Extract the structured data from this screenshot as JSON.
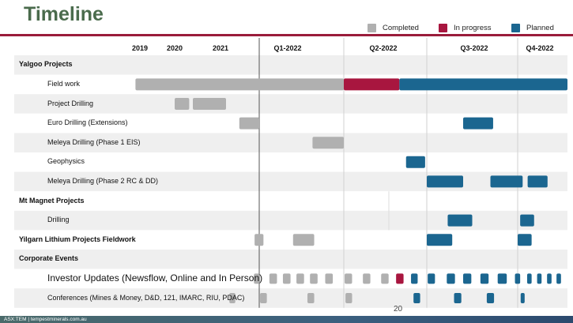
{
  "title": "Timeline",
  "legend": [
    {
      "label": "Completed",
      "color": "#b0b0b0"
    },
    {
      "label": "In progress",
      "color": "#a8163f"
    },
    {
      "label": "Planned",
      "color": "#1b6690"
    }
  ],
  "page_number": "20",
  "footer_text": "ASX:TEM | tempestminerals.com.au",
  "chart_data": {
    "type": "gantt",
    "periods": [
      "2019",
      "2020",
      "2021",
      "Q1-2022",
      "Q2-2022",
      "Q3-2022",
      "Q4-2022"
    ],
    "rows": [
      {
        "label": "Yalgoo Projects",
        "category": true,
        "tasks": []
      },
      {
        "label": "Field work",
        "category": false,
        "tasks": [
          {
            "status": "completed",
            "start": 0.3,
            "end": 4.0
          },
          {
            "status": "in_progress",
            "start": 4.0,
            "end": 4.67
          },
          {
            "status": "planned",
            "start": 4.67,
            "end": 7.0
          }
        ]
      },
      {
        "label": "Project Drilling",
        "category": false,
        "tasks": [
          {
            "status": "completed",
            "start": 1.5,
            "end": 1.9
          },
          {
            "status": "completed",
            "start": 2.0,
            "end": 2.5
          }
        ]
      },
      {
        "label": "Euro Drilling (Extensions)",
        "category": false,
        "tasks": [
          {
            "status": "completed",
            "start": 2.7,
            "end": 3.0
          },
          {
            "status": "planned",
            "start": 5.4,
            "end": 5.73
          }
        ]
      },
      {
        "label": "Meleya Drilling (Phase 1 EIS)",
        "category": false,
        "tasks": [
          {
            "status": "completed",
            "start": 3.63,
            "end": 4.0
          }
        ]
      },
      {
        "label": "Geophysics",
        "category": false,
        "tasks": [
          {
            "status": "planned",
            "start": 4.75,
            "end": 4.98
          }
        ]
      },
      {
        "label": "Meleya Drilling (Phase 2 RC & DD)",
        "category": false,
        "tasks": [
          {
            "status": "planned",
            "start": 5.0,
            "end": 5.4
          },
          {
            "status": "planned",
            "start": 5.7,
            "end": 6.1
          },
          {
            "status": "planned",
            "start": 6.2,
            "end": 6.6
          }
        ]
      },
      {
        "label": "Mt Magnet Projects",
        "category": true,
        "tasks": []
      },
      {
        "label": "Drilling",
        "category": false,
        "tasks": [
          {
            "status": "planned",
            "start": 5.23,
            "end": 5.5
          },
          {
            "status": "planned",
            "start": 6.05,
            "end": 6.33
          }
        ]
      },
      {
        "label": "Yilgarn Lithium Projects Fieldwork",
        "category": true,
        "tasks": [
          {
            "status": "completed",
            "start": 2.93,
            "end": 3.05
          },
          {
            "status": "completed",
            "start": 3.4,
            "end": 3.65
          },
          {
            "status": "planned",
            "start": 5.0,
            "end": 5.28
          },
          {
            "status": "planned",
            "start": 6.0,
            "end": 6.28
          }
        ]
      },
      {
        "label": "Corporate Events",
        "category": true,
        "tasks": []
      },
      {
        "label": "Investor Updates (Newsflow, Online and In Person)",
        "category": false,
        "big": true,
        "tasks": [
          {
            "status": "completed",
            "start": 2.92,
            "end": 3.0
          },
          {
            "status": "completed",
            "start": 3.12,
            "end": 3.21
          },
          {
            "status": "completed",
            "start": 3.28,
            "end": 3.37
          },
          {
            "status": "completed",
            "start": 3.44,
            "end": 3.53
          },
          {
            "status": "completed",
            "start": 3.6,
            "end": 3.69
          },
          {
            "status": "completed",
            "start": 3.78,
            "end": 3.87
          },
          {
            "status": "completed",
            "start": 4.01,
            "end": 4.1
          },
          {
            "status": "completed",
            "start": 4.23,
            "end": 4.32
          },
          {
            "status": "completed",
            "start": 4.45,
            "end": 4.54
          },
          {
            "status": "in_progress",
            "start": 4.63,
            "end": 4.72
          },
          {
            "status": "planned",
            "start": 4.81,
            "end": 4.89
          },
          {
            "status": "planned",
            "start": 5.01,
            "end": 5.09
          },
          {
            "status": "planned",
            "start": 5.22,
            "end": 5.31
          },
          {
            "status": "planned",
            "start": 5.4,
            "end": 5.49
          },
          {
            "status": "planned",
            "start": 5.59,
            "end": 5.68
          },
          {
            "status": "planned",
            "start": 5.78,
            "end": 5.88
          },
          {
            "status": "planned",
            "start": 5.97,
            "end": 6.05
          },
          {
            "status": "planned",
            "start": 6.19,
            "end": 6.28
          },
          {
            "status": "planned",
            "start": 6.39,
            "end": 6.48
          },
          {
            "status": "planned",
            "start": 6.59,
            "end": 6.68
          },
          {
            "status": "planned",
            "start": 6.78,
            "end": 6.87
          }
        ]
      },
      {
        "label": "Conferences (Mines & Money, D&D, 121, IMARC, RIU, PDAC)",
        "category": false,
        "tasks": [
          {
            "status": "completed",
            "start": 2.55,
            "end": 2.64
          },
          {
            "status": "completed",
            "start": 3.01,
            "end": 3.09
          },
          {
            "status": "completed",
            "start": 3.57,
            "end": 3.65
          },
          {
            "status": "completed",
            "start": 4.02,
            "end": 4.1
          },
          {
            "status": "planned",
            "start": 4.84,
            "end": 4.92
          },
          {
            "status": "planned",
            "start": 5.3,
            "end": 5.38
          },
          {
            "status": "planned",
            "start": 5.66,
            "end": 5.74
          },
          {
            "status": "planned",
            "start": 6.06,
            "end": 6.14
          }
        ]
      }
    ]
  }
}
